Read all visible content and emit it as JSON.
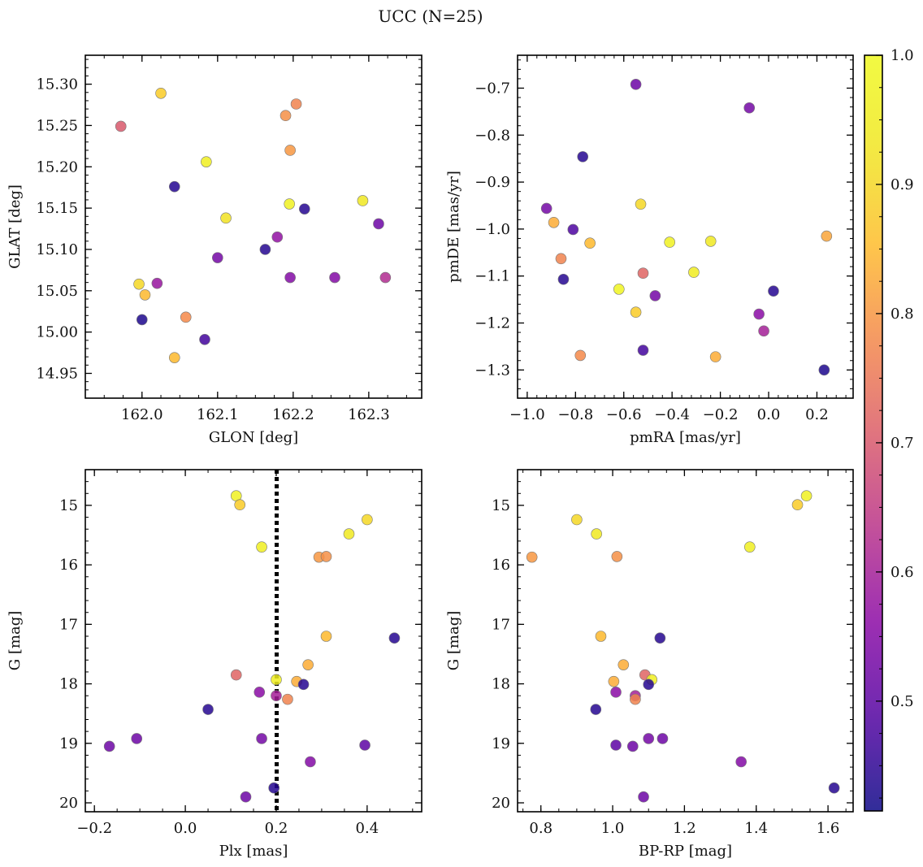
{
  "title": "UCC (N=25)",
  "colorbar": {
    "ticks": [
      0.5,
      0.6,
      0.7,
      0.8,
      0.9,
      1.0
    ],
    "tick_labels": [
      "0.5",
      "0.6",
      "0.7",
      "0.8",
      "0.9",
      "1.0"
    ],
    "range": [
      0.415,
      1.0
    ],
    "colormap": "plasma"
  },
  "chart_data": [
    {
      "type": "scatter",
      "xlabel": "GLON [deg]",
      "ylabel": "GLAT [deg]",
      "xlim": [
        161.925,
        162.37
      ],
      "ylim": [
        14.92,
        15.335
      ],
      "xticks": [
        162.0,
        162.1,
        162.2,
        162.3
      ],
      "xtick_labels": [
        "162.0",
        "162.1",
        "162.2",
        "162.3"
      ],
      "yticks": [
        14.95,
        15.0,
        15.05,
        15.1,
        15.15,
        15.2,
        15.25,
        15.3
      ],
      "ytick_labels": [
        "14.95",
        "15.00",
        "15.05",
        "15.10",
        "15.15",
        "15.20",
        "15.25",
        "15.30"
      ],
      "yinverted": false,
      "x": [
        162.025,
        161.972,
        162.204,
        162.19,
        162.196,
        162.085,
        162.043,
        162.195,
        162.292,
        162.215,
        162.111,
        162.313,
        162.179,
        162.163,
        162.1,
        162.196,
        162.255,
        162.322,
        161.996,
        162.02,
        162.004,
        162.058,
        162.0,
        162.083,
        162.043
      ],
      "y": [
        15.289,
        15.249,
        15.276,
        15.262,
        15.22,
        15.206,
        15.176,
        15.155,
        15.159,
        15.149,
        15.138,
        15.131,
        15.115,
        15.1,
        15.09,
        15.066,
        15.066,
        15.066,
        15.058,
        15.059,
        15.045,
        15.018,
        15.015,
        14.991,
        14.969
      ],
      "prob": [
        0.88,
        0.7,
        0.77,
        0.79,
        0.8,
        0.96,
        0.44,
        0.97,
        0.93,
        0.44,
        0.92,
        0.52,
        0.57,
        0.44,
        0.53,
        0.55,
        0.55,
        0.62,
        0.9,
        0.58,
        0.85,
        0.78,
        0.43,
        0.47,
        0.85
      ]
    },
    {
      "type": "scatter",
      "xlabel": "pmRA [mas/yr]",
      "ylabel": "pmDE [mas/yr]",
      "xlim": [
        -1.04,
        0.35
      ],
      "ylim": [
        -1.36,
        -0.63
      ],
      "xticks": [
        -1.0,
        -0.8,
        -0.6,
        -0.4,
        -0.2,
        0.0,
        0.2
      ],
      "xtick_labels": [
        "−1.0",
        "−0.8",
        "−0.6",
        "−0.4",
        "−0.2",
        "0.0",
        "0.2"
      ],
      "yticks": [
        -1.3,
        -1.2,
        -1.1,
        -1.0,
        -0.9,
        -0.8,
        -0.7
      ],
      "ytick_labels": [
        "−1.3",
        "−1.2",
        "−1.1",
        "−1.0",
        "−0.9",
        "−0.8",
        "−0.7"
      ],
      "yinverted": false,
      "x": [
        -0.55,
        -0.08,
        -0.77,
        -0.92,
        -0.53,
        -0.89,
        -0.81,
        -0.74,
        -0.41,
        -0.24,
        0.24,
        -0.86,
        -0.85,
        -0.52,
        -0.31,
        -0.62,
        -0.47,
        0.02,
        -0.55,
        -0.04,
        -0.02,
        -0.78,
        -0.52,
        -0.22,
        0.23
      ],
      "y": [
        -0.692,
        -0.742,
        -0.846,
        -0.956,
        -0.947,
        -0.986,
        -1.001,
        -1.03,
        -1.028,
        -1.026,
        -1.015,
        -1.063,
        -1.107,
        -1.094,
        -1.092,
        -1.128,
        -1.142,
        -1.132,
        -1.177,
        -1.181,
        -1.217,
        -1.269,
        -1.258,
        -1.272,
        -1.3
      ],
      "prob": [
        0.52,
        0.53,
        0.44,
        0.53,
        0.9,
        0.83,
        0.48,
        0.85,
        0.97,
        0.94,
        0.82,
        0.77,
        0.44,
        0.72,
        0.95,
        0.98,
        0.53,
        0.44,
        0.88,
        0.56,
        0.6,
        0.78,
        0.47,
        0.83,
        0.43
      ]
    },
    {
      "type": "scatter",
      "xlabel": "Plx [mas]",
      "ylabel": "G [mag]",
      "xlim": [
        -0.22,
        0.52
      ],
      "ylim": [
        20.15,
        14.4
      ],
      "xticks": [
        -0.2,
        0.0,
        0.2,
        0.4
      ],
      "xtick_labels": [
        "−0.2",
        "0.0",
        "0.2",
        "0.4"
      ],
      "yticks": [
        15,
        16,
        17,
        18,
        19,
        20
      ],
      "ytick_labels": [
        "15",
        "16",
        "17",
        "18",
        "19",
        "20"
      ],
      "yinverted": true,
      "reference_line": {
        "x": 0.201,
        "style": "dotted"
      },
      "x": [
        0.112,
        0.12,
        0.4,
        0.36,
        0.168,
        0.294,
        0.31,
        0.31,
        0.46,
        0.27,
        0.112,
        0.245,
        0.2,
        0.26,
        0.163,
        0.2,
        0.225,
        0.05,
        0.168,
        -0.107,
        -0.167,
        0.395,
        0.275,
        0.195,
        0.133
      ],
      "y": [
        14.84,
        14.99,
        15.24,
        15.48,
        15.7,
        15.87,
        15.86,
        17.2,
        17.23,
        17.68,
        17.85,
        17.96,
        17.93,
        18.01,
        18.14,
        18.2,
        18.26,
        18.43,
        18.92,
        18.92,
        19.05,
        19.03,
        19.31,
        19.75,
        19.9
      ],
      "prob": [
        0.97,
        0.88,
        0.9,
        0.94,
        0.96,
        0.8,
        0.79,
        0.85,
        0.44,
        0.83,
        0.72,
        0.83,
        0.96,
        0.44,
        0.56,
        0.6,
        0.77,
        0.44,
        0.53,
        0.52,
        0.52,
        0.5,
        0.55,
        0.44,
        0.52
      ]
    },
    {
      "type": "scatter",
      "xlabel": "BP-RP [mag]",
      "ylabel": "G [mag]",
      "xlim": [
        0.735,
        1.67
      ],
      "ylim": [
        20.15,
        14.4
      ],
      "xticks": [
        0.8,
        1.0,
        1.2,
        1.4,
        1.6
      ],
      "xtick_labels": [
        "0.8",
        "1.0",
        "1.2",
        "1.4",
        "1.6"
      ],
      "yticks": [
        15,
        16,
        17,
        18,
        19,
        20
      ],
      "ytick_labels": [
        "15",
        "16",
        "17",
        "18",
        "19",
        "20"
      ],
      "yinverted": true,
      "x": [
        1.54,
        1.515,
        0.9,
        0.955,
        1.382,
        0.775,
        1.012,
        0.967,
        1.132,
        1.03,
        1.09,
        1.003,
        1.109,
        1.1,
        1.009,
        1.063,
        1.063,
        0.953,
        1.1,
        1.139,
        1.009,
        1.056,
        1.358,
        1.617,
        1.086
      ],
      "y": [
        14.84,
        14.99,
        15.24,
        15.48,
        15.7,
        15.87,
        15.86,
        17.2,
        17.23,
        17.68,
        17.85,
        17.96,
        17.93,
        18.01,
        18.14,
        18.2,
        18.26,
        18.43,
        18.92,
        18.92,
        19.03,
        19.05,
        19.31,
        19.75,
        19.9
      ],
      "prob": [
        0.97,
        0.88,
        0.9,
        0.94,
        0.96,
        0.8,
        0.79,
        0.85,
        0.44,
        0.83,
        0.72,
        0.83,
        0.96,
        0.44,
        0.56,
        0.6,
        0.77,
        0.44,
        0.53,
        0.52,
        0.5,
        0.52,
        0.55,
        0.44,
        0.52
      ]
    }
  ]
}
